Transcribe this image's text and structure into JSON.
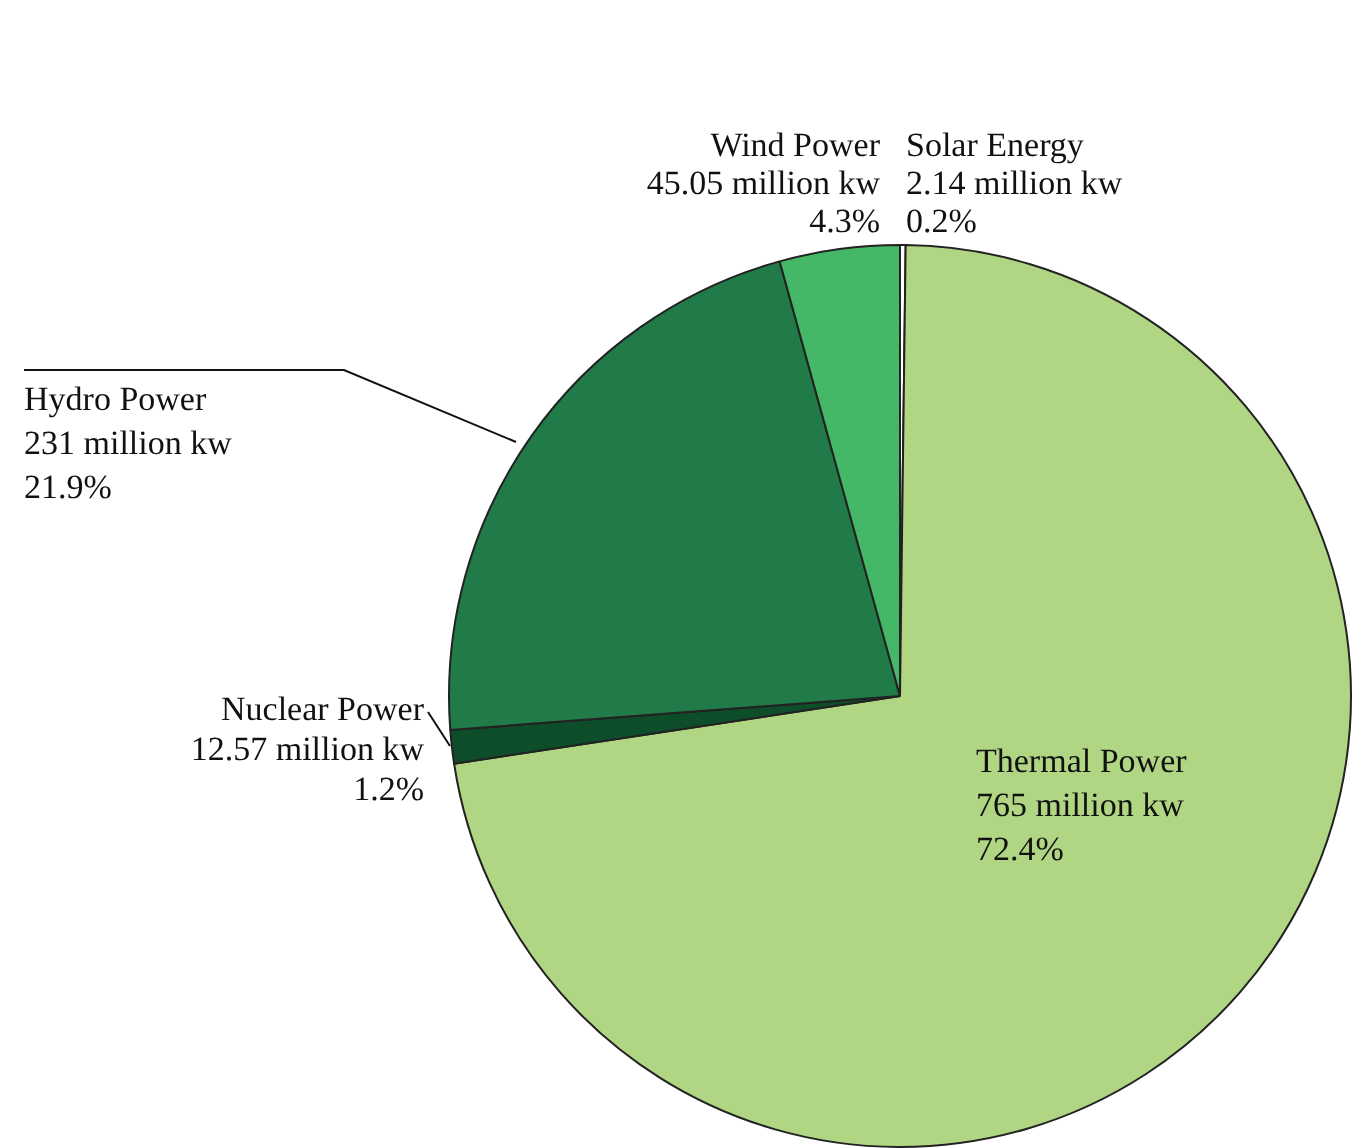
{
  "chart_data": {
    "type": "pie",
    "categories": [
      "Solar Energy",
      "Thermal Power",
      "Nuclear Power",
      "Hydro Power",
      "Wind Power"
    ],
    "values": [
      0.2,
      72.4,
      1.2,
      21.9,
      4.3
    ],
    "value_labels": [
      "0.2%",
      "72.4%",
      "1.2%",
      "21.9%",
      "4.3%"
    ],
    "annotations": [
      {
        "text": "2.14 million kw",
        "x": "Solar Energy"
      },
      {
        "text": "765 million kw",
        "x": "Thermal Power"
      },
      {
        "text": "12.57 million kw",
        "x": "Nuclear Power"
      },
      {
        "text": "231 million kw",
        "x": "Hydro Power"
      },
      {
        "text": "45.05 million kw",
        "x": "Wind Power"
      }
    ],
    "colors": [
      "#ffffff",
      "#b0d683",
      "#0d4d2a",
      "#217b48",
      "#45b868"
    ],
    "legend": false
  }
}
